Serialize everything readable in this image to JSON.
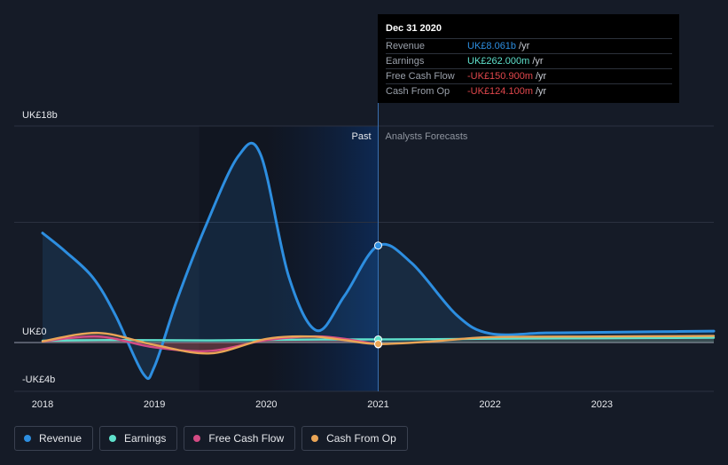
{
  "chart_data": {
    "type": "area",
    "y_unit": "UK£b",
    "ylim": [
      -4,
      18
    ],
    "xlim": [
      2018,
      2024
    ],
    "y_axis_labels": [
      {
        "value": 18,
        "label": "UK£18b"
      },
      {
        "value": 0,
        "label": "UK£0"
      },
      {
        "value": -4,
        "label": "-UK£4b"
      }
    ],
    "x_ticks": [
      {
        "value": 2018,
        "label": "2018"
      },
      {
        "value": 2019,
        "label": "2019"
      },
      {
        "value": 2020,
        "label": "2020"
      },
      {
        "value": 2021,
        "label": "2021"
      },
      {
        "value": 2022,
        "label": "2022"
      },
      {
        "value": 2023,
        "label": "2023"
      }
    ],
    "grid_values": [
      18,
      10,
      0
    ],
    "divider_x": 2021,
    "region_labels": {
      "past": "Past",
      "forecast": "Analysts Forecasts"
    },
    "series": [
      {
        "name": "Revenue",
        "color": "#2d8ee0",
        "x": [
          2018.0,
          2018.2,
          2018.45,
          2018.65,
          2018.9,
          2019.0,
          2019.2,
          2019.45,
          2019.75,
          2019.95,
          2020.2,
          2020.45,
          2020.7,
          2021.0,
          2021.3,
          2021.7,
          2022.0,
          2022.5,
          2023.0,
          2023.5,
          2024.0
        ],
        "values": [
          9.1,
          7.6,
          5.4,
          2.3,
          -2.6,
          -2.0,
          3.5,
          9.5,
          15.5,
          15.6,
          5.5,
          1.0,
          3.9,
          8.061,
          6.6,
          2.3,
          0.75,
          0.8,
          0.85,
          0.9,
          0.95
        ]
      },
      {
        "name": "Earnings",
        "color": "#5fe1cc",
        "x": [
          2018.0,
          2018.5,
          2019.0,
          2019.5,
          2020.0,
          2020.5,
          2021.0,
          2021.5,
          2022.0,
          2023.0,
          2024.0
        ],
        "values": [
          0.15,
          0.2,
          0.2,
          0.18,
          0.22,
          0.25,
          0.262,
          0.28,
          0.32,
          0.36,
          0.4
        ]
      },
      {
        "name": "Free Cash Flow",
        "color": "#d44b84",
        "x": [
          2018.0,
          2018.5,
          2019.0,
          2019.5,
          2020.0,
          2020.5,
          2021.0
        ],
        "values": [
          0.1,
          0.5,
          -0.4,
          -0.7,
          0.2,
          0.5,
          -0.151
        ]
      },
      {
        "name": "Cash From Op",
        "color": "#eaa556",
        "x": [
          2018.0,
          2018.5,
          2019.0,
          2019.5,
          2020.0,
          2020.4,
          2020.7,
          2021.0,
          2021.5,
          2022.0,
          2023.0,
          2024.0
        ],
        "values": [
          0.1,
          0.8,
          -0.2,
          -0.9,
          0.3,
          0.5,
          0.2,
          -0.124,
          0.1,
          0.45,
          0.5,
          0.55
        ]
      }
    ]
  },
  "tooltip": {
    "date": "Dec 31 2020",
    "unit": "/yr",
    "rows": [
      {
        "label": "Revenue",
        "value": "UK£8.061b",
        "color": "#2d8ee0"
      },
      {
        "label": "Earnings",
        "value": "UK£262.000m",
        "color": "#5fe1cc"
      },
      {
        "label": "Free Cash Flow",
        "value": "-UK£150.900m",
        "color": "#e0474c"
      },
      {
        "label": "Cash From Op",
        "value": "-UK£124.100m",
        "color": "#e0474c"
      }
    ]
  },
  "legend": [
    {
      "label": "Revenue",
      "color": "#2d8ee0"
    },
    {
      "label": "Earnings",
      "color": "#5fe1cc"
    },
    {
      "label": "Free Cash Flow",
      "color": "#d44b84"
    },
    {
      "label": "Cash From Op",
      "color": "#eaa556"
    }
  ]
}
